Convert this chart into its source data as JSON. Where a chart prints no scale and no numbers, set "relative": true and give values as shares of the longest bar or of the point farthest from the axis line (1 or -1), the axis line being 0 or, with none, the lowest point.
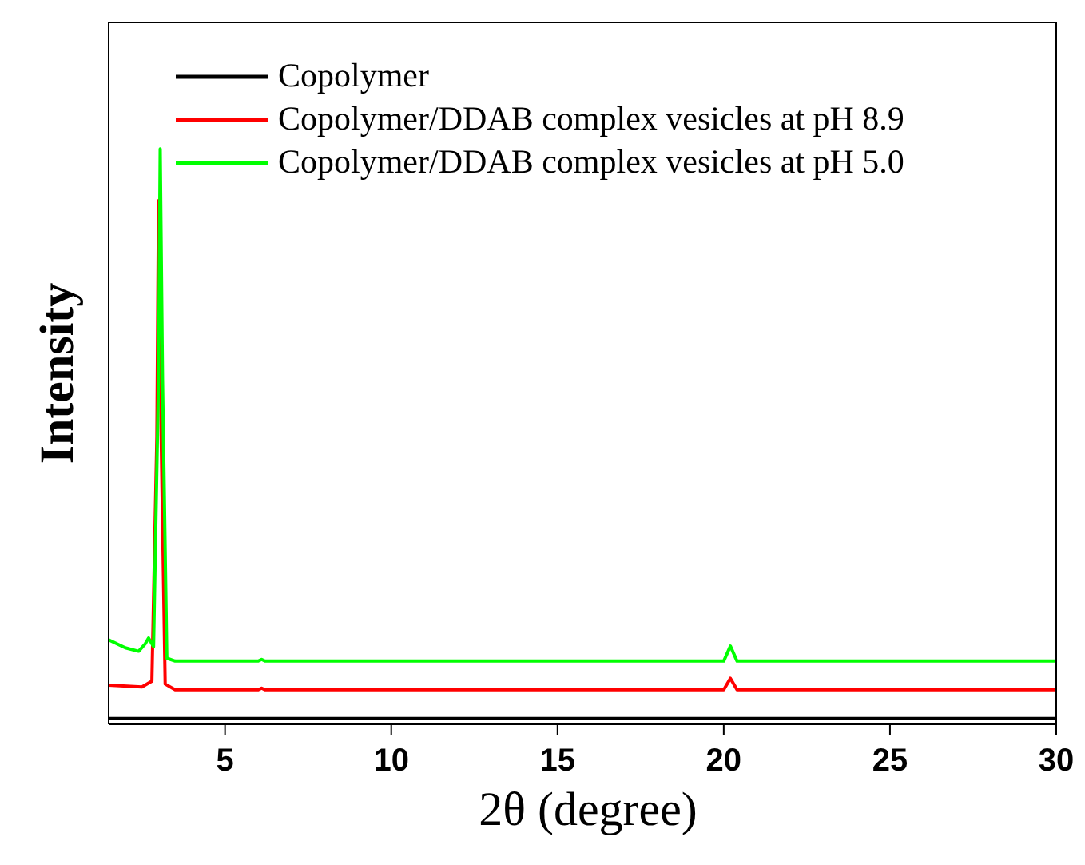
{
  "chart_data": {
    "type": "line",
    "xlabel": "2θ (degree)",
    "ylabel": "Intensity",
    "relative": true,
    "xlim": [
      1.5,
      30
    ],
    "xticks": [
      5,
      10,
      15,
      20,
      25,
      30
    ],
    "legend": "top left",
    "grid": false,
    "marker": "none",
    "line_style": "solid",
    "series": [
      {
        "name": "Copolymer",
        "color": "#000000",
        "x": [
          1.5,
          3.0,
          6.0,
          10,
          15,
          20,
          25,
          30
        ],
        "values": [
          0.01,
          0.01,
          0.01,
          0.01,
          0.01,
          0.01,
          0.01,
          0.01
        ]
      },
      {
        "name": "Copolymer/DDAB complex vesicles at pH 8.9",
        "color": "#ff0000",
        "x": [
          1.5,
          2.5,
          2.8,
          2.95,
          3.0,
          3.08,
          3.2,
          3.5,
          6.0,
          6.1,
          6.2,
          20.0,
          20.2,
          20.4,
          30
        ],
        "values": [
          0.068,
          0.065,
          0.075,
          0.5,
          0.91,
          0.5,
          0.07,
          0.06,
          0.06,
          0.063,
          0.06,
          0.06,
          0.08,
          0.06,
          0.06
        ]
      },
      {
        "name": "Copolymer/DDAB complex vesicles at pH 5.0",
        "color": "#00ff00",
        "x": [
          1.5,
          2.0,
          2.4,
          2.6,
          2.7,
          2.85,
          3.0,
          3.05,
          3.12,
          3.25,
          3.5,
          6.0,
          6.1,
          6.2,
          20.0,
          20.2,
          20.4,
          30
        ],
        "values": [
          0.147,
          0.133,
          0.127,
          0.14,
          0.15,
          0.135,
          0.6,
          1.0,
          0.6,
          0.115,
          0.11,
          0.11,
          0.113,
          0.11,
          0.11,
          0.136,
          0.11,
          0.11
        ]
      }
    ]
  }
}
